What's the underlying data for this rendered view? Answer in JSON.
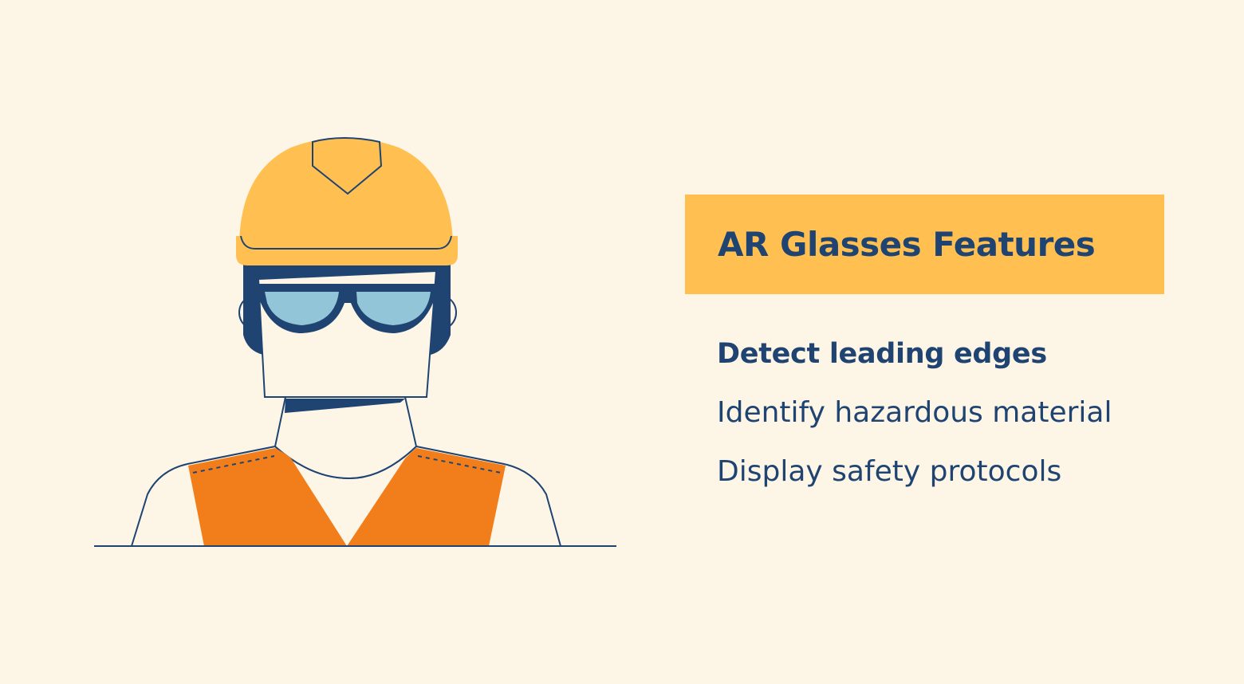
{
  "colors": {
    "background": "#fdf5e6",
    "accent_yellow": "#ffc051",
    "navy": "#1f4472",
    "vest_orange": "#f27d1b",
    "lens_blue": "#93c5d9",
    "skin": "#fdf5e6"
  },
  "panel": {
    "title": "AR Glasses Features"
  },
  "features": [
    {
      "label": "Detect leading edges",
      "highlighted": true
    },
    {
      "label": "Identify hazardous material",
      "highlighted": false
    },
    {
      "label": "Display safety protocols",
      "highlighted": false
    }
  ],
  "illustration": {
    "figure": "construction-worker",
    "items": [
      "hard-hat",
      "ar-glasses",
      "safety-vest"
    ]
  }
}
